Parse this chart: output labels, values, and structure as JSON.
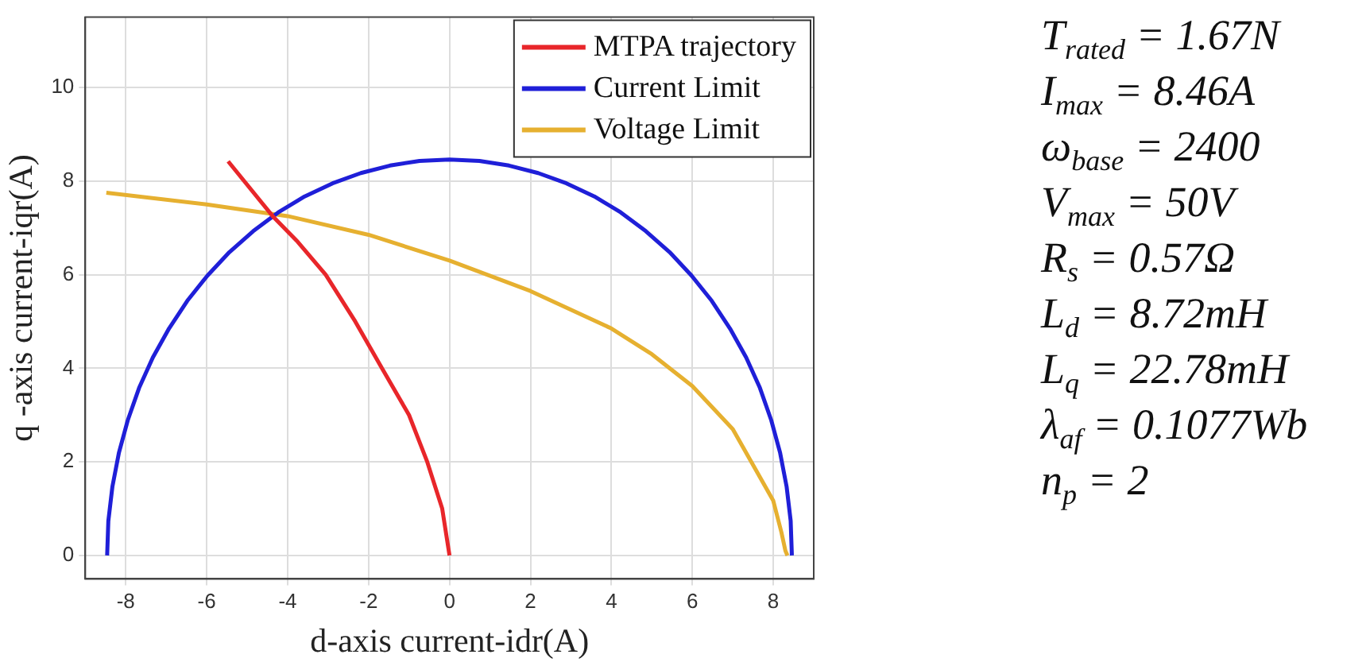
{
  "chart_data": {
    "type": "line",
    "xlabel": "d-axis current-idr(A)",
    "ylabel": "q -axis current-iqr(A)",
    "xlim": [
      -9,
      9
    ],
    "xticks": [
      -8,
      -6,
      -4,
      -2,
      0,
      2,
      4,
      6,
      8
    ],
    "ylim": [
      -0.5,
      11.5
    ],
    "yticks": [
      0,
      2,
      4,
      6,
      8,
      10
    ],
    "grid": true,
    "legend": "top right",
    "marker": "none",
    "line_style": "solid",
    "series": [
      {
        "name": "MTPA trajectory",
        "color": "#e8262a",
        "x": [
          0,
          -0.18,
          -0.55,
          -1.0,
          -1.67,
          -2.33,
          -3.06,
          -3.75,
          -4.37,
          -5.47
        ],
        "values": [
          0,
          1,
          2,
          3,
          4,
          5,
          6,
          6.7,
          7.25,
          8.42
        ]
      },
      {
        "name": "Current Limit",
        "color": "#1f1fd8",
        "x": [
          8.46,
          8.43,
          8.33,
          8.17,
          7.95,
          7.67,
          7.33,
          6.93,
          6.48,
          5.98,
          5.44,
          4.85,
          4.23,
          3.58,
          2.89,
          2.19,
          1.47,
          0.74,
          0,
          -0.74,
          -1.47,
          -2.19,
          -2.89,
          -3.58,
          -4.23,
          -4.85,
          -5.44,
          -5.98,
          -6.48,
          -6.93,
          -7.33,
          -7.67,
          -7.95,
          -8.17,
          -8.33,
          -8.43,
          -8.46
        ],
        "values": [
          0,
          0.74,
          1.47,
          2.19,
          2.89,
          3.58,
          4.23,
          4.85,
          5.44,
          5.98,
          6.48,
          6.93,
          7.33,
          7.67,
          7.95,
          8.17,
          8.33,
          8.43,
          8.46,
          8.43,
          8.33,
          8.17,
          7.95,
          7.67,
          7.33,
          6.93,
          6.48,
          5.98,
          5.44,
          4.85,
          4.23,
          3.58,
          2.89,
          2.19,
          1.47,
          0.74,
          0
        ]
      },
      {
        "name": "Voltage Limit",
        "color": "#e6b030",
        "x": [
          8.35,
          8.3,
          8.2,
          8,
          7,
          6,
          5,
          4,
          2,
          0,
          -2,
          -4,
          -6,
          -8.48
        ],
        "values": [
          0,
          0.1,
          0.5,
          1.17,
          2.7,
          3.62,
          4.3,
          4.85,
          5.65,
          6.3,
          6.85,
          7.25,
          7.5,
          7.75
        ]
      }
    ],
    "annotations": [
      "T$_{rated}$ = 1.67N",
      "I$_{max}$ = 8.46A",
      "ω$_{base}$ = 2400",
      "V$_{max}$ = 50V",
      "R$_{s}$ = 0.57Ω",
      "L$_{d}$ = 8.72mH",
      "L$_{q}$ = 22.78mH",
      "λ$_{af}$ = 0.1077Wb",
      "n$_{p}$ = 2"
    ]
  }
}
